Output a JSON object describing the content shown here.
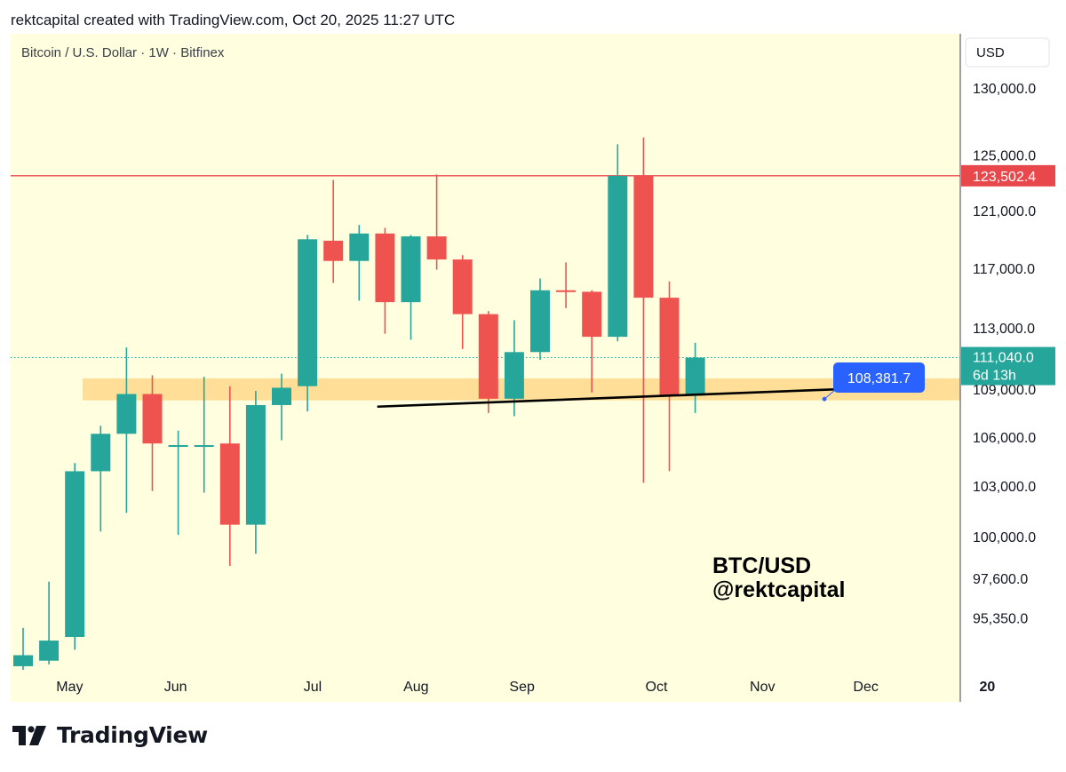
{
  "header": {
    "credit": "rektcapital created with TradingView.com, Oct 20, 2025 11:27 UTC"
  },
  "footer": {
    "brand": "TradingView"
  },
  "colors": {
    "background": "#ffffe0",
    "up": "#26a69a",
    "down": "#ef5350",
    "resistance": "#e8474b",
    "support_zone": "#ffd98a",
    "trendline": "#000000",
    "callout": "#2962ff",
    "current_price_tag": "#26a69a"
  },
  "chart_data": {
    "type": "candlestick",
    "title": "Bitcoin / U.S. Dollar · 1W · Bitfinex",
    "currency_button": "USD",
    "y_scale": "log",
    "ylim": [
      92600,
      134200
    ],
    "y_ticks": [
      {
        "value": 130000,
        "label": "130,000.0"
      },
      {
        "value": 125000,
        "label": "125,000.0"
      },
      {
        "value": 121000,
        "label": "121,000.0"
      },
      {
        "value": 117000,
        "label": "117,000.0"
      },
      {
        "value": 113000,
        "label": "113,000.0"
      },
      {
        "value": 109000,
        "label": "109,000.0"
      },
      {
        "value": 106000,
        "label": "106,000.0"
      },
      {
        "value": 103000,
        "label": "103,000.0"
      },
      {
        "value": 100000,
        "label": "100,000.0"
      },
      {
        "value": 97600,
        "label": "97,600.0"
      },
      {
        "value": 95350,
        "label": "95,350.0"
      }
    ],
    "x_ticks": [
      {
        "index": 1.8,
        "label": "May"
      },
      {
        "index": 5.9,
        "label": "Jun"
      },
      {
        "index": 11.2,
        "label": "Jul"
      },
      {
        "index": 15.2,
        "label": "Aug"
      },
      {
        "index": 19.3,
        "label": "Sep"
      },
      {
        "index": 24.5,
        "label": "Oct"
      },
      {
        "index": 28.6,
        "label": "Nov"
      },
      {
        "index": 32.6,
        "label": "Dec"
      },
      {
        "index": 37.3,
        "label": "20"
      }
    ],
    "candles": [
      {
        "week": "Apr 14",
        "open": 92700,
        "high": 94800,
        "low": 92500,
        "close": 93300
      },
      {
        "week": "Apr 21",
        "open": 93000,
        "high": 97400,
        "low": 92800,
        "close": 94100
      },
      {
        "week": "Apr 28",
        "open": 94300,
        "high": 104400,
        "low": 93600,
        "close": 103900
      },
      {
        "week": "May 5",
        "open": 103900,
        "high": 106700,
        "low": 100300,
        "close": 106200
      },
      {
        "week": "May 12",
        "open": 106200,
        "high": 111700,
        "low": 101400,
        "close": 108700
      },
      {
        "week": "May 19",
        "open": 108700,
        "high": 109900,
        "low": 102700,
        "close": 105600
      },
      {
        "week": "May 26",
        "open": 105400,
        "high": 106400,
        "low": 100100,
        "close": 105500
      },
      {
        "week": "Jun 2",
        "open": 105500,
        "high": 109800,
        "low": 102600,
        "close": 105500
      },
      {
        "week": "Jun 9",
        "open": 105600,
        "high": 109200,
        "low": 98300,
        "close": 100700
      },
      {
        "week": "Jun 16",
        "open": 100700,
        "high": 108900,
        "low": 99000,
        "close": 108000
      },
      {
        "week": "Jun 23",
        "open": 108000,
        "high": 110000,
        "low": 105800,
        "close": 109100
      },
      {
        "week": "Jun 30",
        "open": 109200,
        "high": 119300,
        "low": 107600,
        "close": 119000
      },
      {
        "week": "Jul 7",
        "open": 118900,
        "high": 123200,
        "low": 116000,
        "close": 117500
      },
      {
        "week": "Jul 14",
        "open": 117500,
        "high": 120000,
        "low": 114800,
        "close": 119400
      },
      {
        "week": "Jul 21",
        "open": 119400,
        "high": 119800,
        "low": 112600,
        "close": 114700
      },
      {
        "week": "Jul 28",
        "open": 114700,
        "high": 119300,
        "low": 112200,
        "close": 119200
      },
      {
        "week": "Aug 4",
        "open": 119200,
        "high": 123600,
        "low": 116900,
        "close": 117600
      },
      {
        "week": "Aug 11",
        "open": 117600,
        "high": 117900,
        "low": 111600,
        "close": 113900
      },
      {
        "week": "Aug 18",
        "open": 113900,
        "high": 114100,
        "low": 107500,
        "close": 108400
      },
      {
        "week": "Aug 25",
        "open": 108400,
        "high": 113500,
        "low": 107300,
        "close": 111400
      },
      {
        "week": "Sep 1",
        "open": 111400,
        "high": 116300,
        "low": 110900,
        "close": 115500
      },
      {
        "week": "Sep 8",
        "open": 115500,
        "high": 117400,
        "low": 114300,
        "close": 115400
      },
      {
        "week": "Sep 15",
        "open": 115400,
        "high": 115500,
        "low": 108800,
        "close": 112400
      },
      {
        "week": "Sep 22",
        "open": 112400,
        "high": 125800,
        "low": 112100,
        "close": 123500
      },
      {
        "week": "Sep 29",
        "open": 123500,
        "high": 126300,
        "low": 103200,
        "close": 115000
      },
      {
        "week": "Oct 6",
        "open": 115000,
        "high": 116100,
        "low": 103900,
        "close": 108600
      },
      {
        "week": "Oct 13",
        "open": 108600,
        "high": 112000,
        "low": 107500,
        "close": 111040
      }
    ],
    "resistance_line": {
      "value": 123502.4,
      "label": "123,502.4"
    },
    "support_zone": {
      "from": 108300,
      "to": 109700,
      "start_index": 2.3
    },
    "trendline": {
      "x1": 13.7,
      "y1": 107900,
      "x2": 34.7,
      "y2": 109200
    },
    "current_price": {
      "value": 111040,
      "label": "111,040.0",
      "countdown": "6d 13h"
    },
    "callout": {
      "label": "108,381.7",
      "point_index": 31.0,
      "point_value": 108381.7
    },
    "annotations": [
      "BTC/USD",
      "@rektcapital"
    ]
  }
}
